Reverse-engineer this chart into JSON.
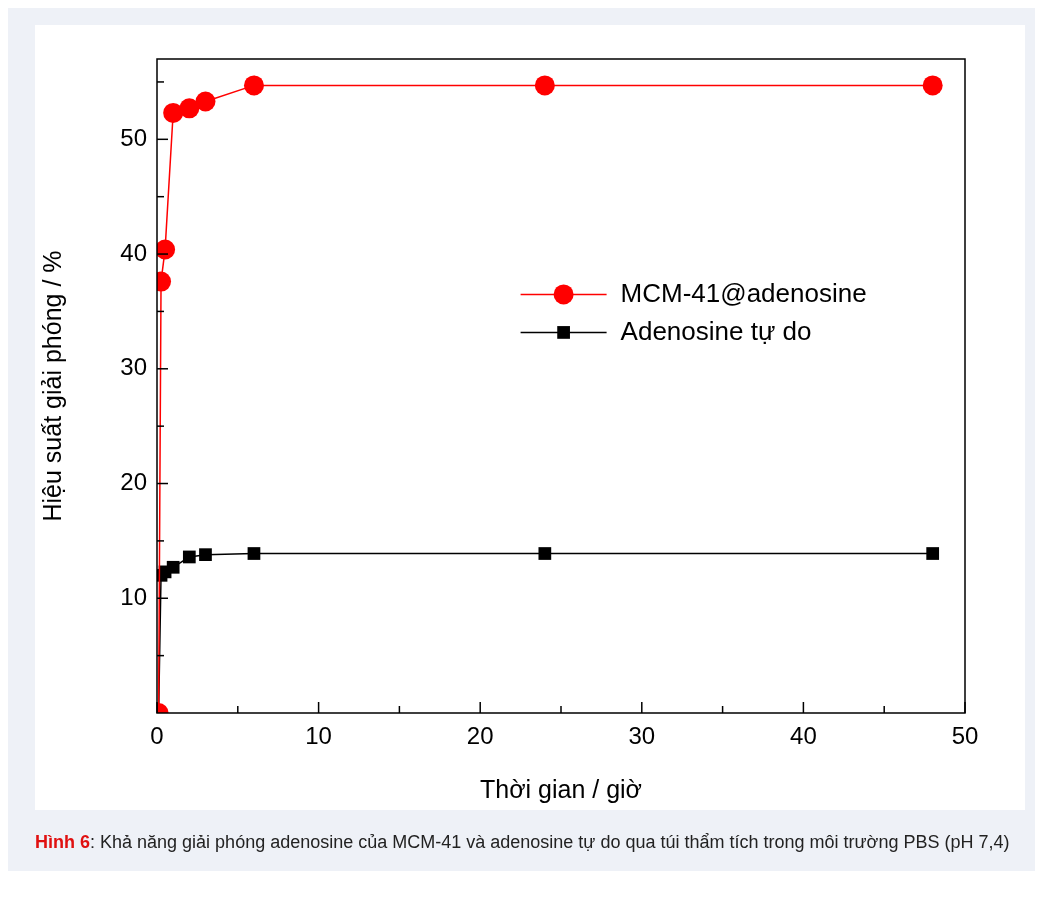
{
  "chart_data": {
    "type": "line",
    "xlabel": "Thời gian / giờ",
    "ylabel": "Hiệu suất giải phóng / %",
    "x": [
      0.1,
      0.25,
      0.5,
      1,
      2,
      3,
      6,
      24,
      48
    ],
    "series": [
      {
        "name": "MCM-41@adenosine",
        "color": "#ff0000",
        "marker": "circle",
        "values": [
          0,
          37.6,
          40.4,
          52.3,
          52.7,
          53.3,
          54.7,
          54.7,
          54.7
        ]
      },
      {
        "name": "Adenosine tự do",
        "color": "#000000",
        "marker": "square",
        "values": [
          0,
          12.0,
          12.3,
          12.7,
          13.6,
          13.8,
          13.9,
          13.9,
          13.9
        ]
      }
    ],
    "xlim": [
      0,
      50
    ],
    "xticks": [
      0,
      {
        "value": 5,
        "label": null
      },
      10,
      {
        "value": 15,
        "label": null
      },
      20,
      {
        "value": 25,
        "label": null
      },
      30,
      {
        "value": 35,
        "label": null
      },
      40,
      {
        "value": 45,
        "label": null
      },
      50
    ],
    "ylim": [
      0,
      57
    ],
    "yticks": [
      {
        "value": 5,
        "label": null
      },
      10,
      {
        "value": 15,
        "label": null
      },
      20,
      {
        "value": 25,
        "label": null
      },
      30,
      {
        "value": 35,
        "label": null
      },
      40,
      {
        "value": 45,
        "label": null
      },
      50,
      {
        "value": 55,
        "label": null
      }
    ],
    "grid": false,
    "legend": "right",
    "line_style": "solid",
    "annotations": [
      "Hình 6: Khả năng giải phóng adenosine của MCM-41 và adenosine tự do qua túi thẩm tích trong môi trường PBS (pH 7,4)"
    ]
  }
}
